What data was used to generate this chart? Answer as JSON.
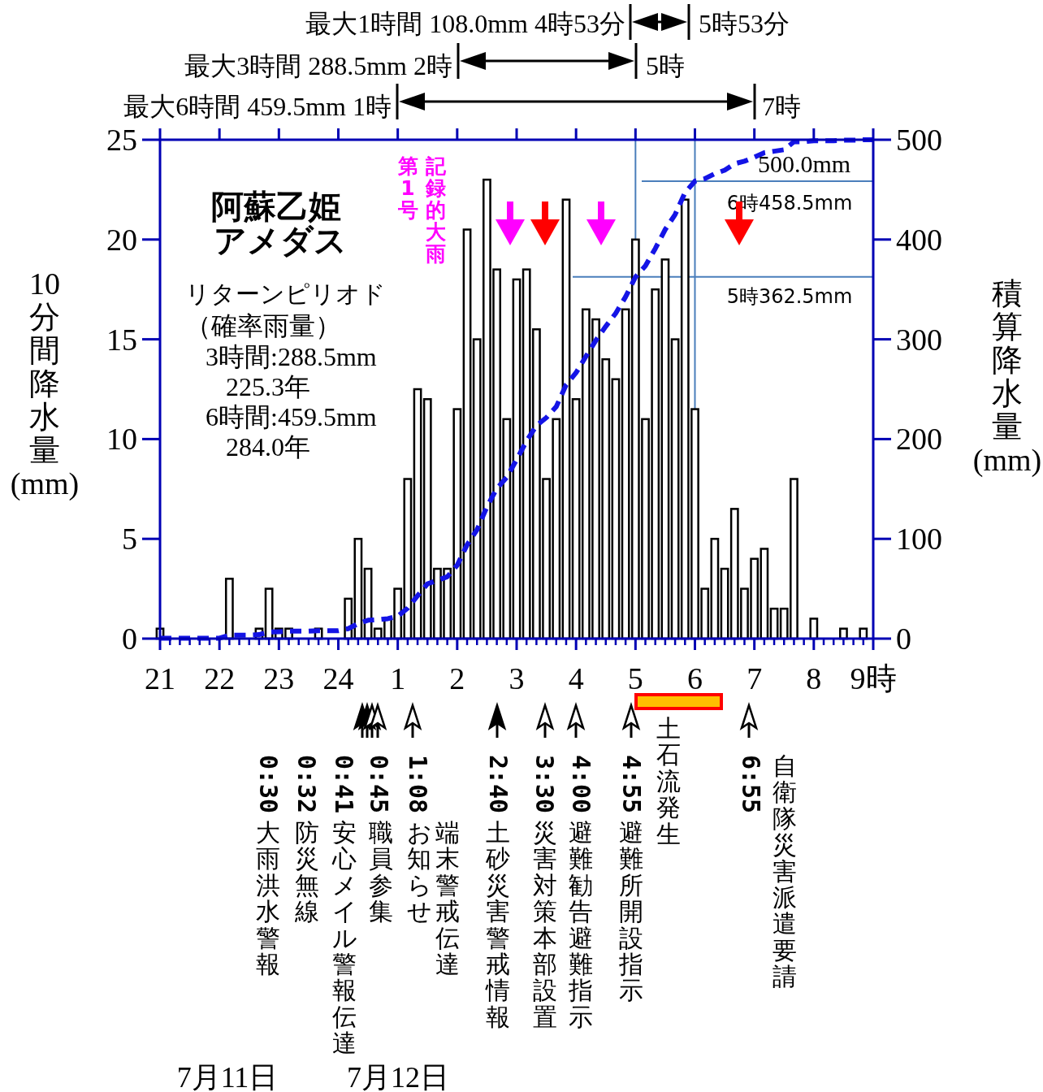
{
  "chart_data": {
    "type": "bar",
    "categories": [
      "21",
      null,
      null,
      null,
      null,
      null,
      "22",
      null,
      null,
      null,
      null,
      null,
      "23",
      null,
      null,
      null,
      null,
      null,
      "24",
      null,
      null,
      null,
      null,
      null,
      "1",
      null,
      null,
      null,
      null,
      null,
      "2",
      null,
      null,
      null,
      null,
      null,
      "3",
      null,
      null,
      null,
      null,
      null,
      "4",
      null,
      null,
      null,
      null,
      null,
      "5",
      null,
      null,
      null,
      null,
      null,
      "6",
      null,
      null,
      null,
      null,
      null,
      "7",
      null,
      null,
      null,
      null,
      null,
      "8",
      null,
      null,
      null,
      null,
      null,
      "9時"
    ],
    "series": [
      {
        "color": "#ffffff",
        "values": [
          0.5,
          0,
          0,
          0,
          0,
          0,
          0,
          3,
          0,
          0,
          0.5,
          2.5,
          0.5,
          0.5,
          0,
          0,
          0.5,
          0,
          0,
          2,
          5,
          3.5,
          0.5,
          1,
          2.5,
          8,
          12.5,
          12,
          3.5,
          3.5,
          11.5,
          20.5,
          15,
          23,
          18.5,
          11,
          18,
          18.5,
          15.5,
          8,
          11,
          22,
          12,
          16.5,
          16,
          14,
          13,
          16.5,
          20,
          11,
          17.5,
          19,
          15,
          22,
          11.5,
          2.5,
          5,
          3.5,
          6.5,
          2.5,
          4,
          4.5,
          1.5,
          1.5,
          8,
          0,
          1,
          0,
          0,
          0.5,
          0,
          0.5,
          0
        ]
      },
      {
        "type": "line",
        "axis": "y2",
        "color": "#1414e6",
        "line_style": "dashed",
        "values": [
          0.5,
          0.5,
          0.5,
          0.5,
          0.5,
          0.5,
          0.5,
          3.5,
          3.5,
          3.5,
          4,
          6.5,
          7,
          7.5,
          7.5,
          7.5,
          8,
          8,
          8,
          10,
          15,
          18.5,
          19,
          20,
          22.5,
          30.5,
          43,
          55,
          58.5,
          62,
          73.5,
          94,
          109,
          132,
          150.5,
          161.5,
          179.5,
          198,
          213.5,
          221.5,
          232.5,
          254.5,
          266.5,
          283,
          299,
          313,
          326,
          342.5,
          362.5,
          373.5,
          391,
          410,
          425,
          447,
          458.5,
          461,
          466,
          469.5,
          476,
          478.5,
          482.5,
          487,
          488.5,
          490,
          498,
          498,
          499,
          499,
          499,
          499.5,
          499.5,
          500,
          500
        ]
      }
    ],
    "ylabel": "10分間降水量(mm)",
    "y2label": "積算降水量(mm)",
    "ylim": [
      0,
      25
    ],
    "yticks": [
      0,
      5,
      10,
      15,
      20,
      25
    ],
    "y2lim": [
      0,
      500
    ],
    "y2ticks": [
      0,
      100,
      200,
      300,
      400,
      500
    ],
    "ref_lines": [
      {
        "axis": "x",
        "value": "5",
        "color": "#4a7ebb"
      },
      {
        "axis": "x",
        "value": "6",
        "color": "#4a7ebb"
      },
      {
        "axis": "y2",
        "value": 458.5,
        "label": "6時458.5mm",
        "color": "#4a7ebb"
      },
      {
        "axis": "y2",
        "value": 362.5,
        "label": "5時362.5mm",
        "color": "#4a7ebb"
      }
    ],
    "annotations": [
      "阿蘇乙姫",
      "アメダス",
      "リターンピリオド",
      "（確率雨量）",
      "3時間:288.5mm",
      "225.3年",
      "6時間:459.5mm",
      "284.0年",
      "記録的大雨",
      "第1号",
      "500.0mm",
      "最大1時間 108.0mm 4時53分",
      "5時53分",
      "最大3時間 288.5mm 2時",
      "5時",
      "最大6時間 459.5mm 1時",
      "7時",
      "0:30",
      "大雨洪水警報",
      "0:32",
      "防災無線",
      "0:41",
      "安心メイル警報伝達",
      "0:45",
      "職員参集",
      "1:08",
      "お知らせ",
      "端末警戒伝達",
      "2:40",
      "土砂災害警戒情報",
      "3:30",
      "災害対策本部設置",
      "4:00",
      "避難勧告避難指示",
      "4:55",
      "避難所開設指示",
      "土石流発生",
      "6:55",
      "自衛隊災害派遣要請",
      "7月11日",
      "7月12日"
    ]
  }
}
